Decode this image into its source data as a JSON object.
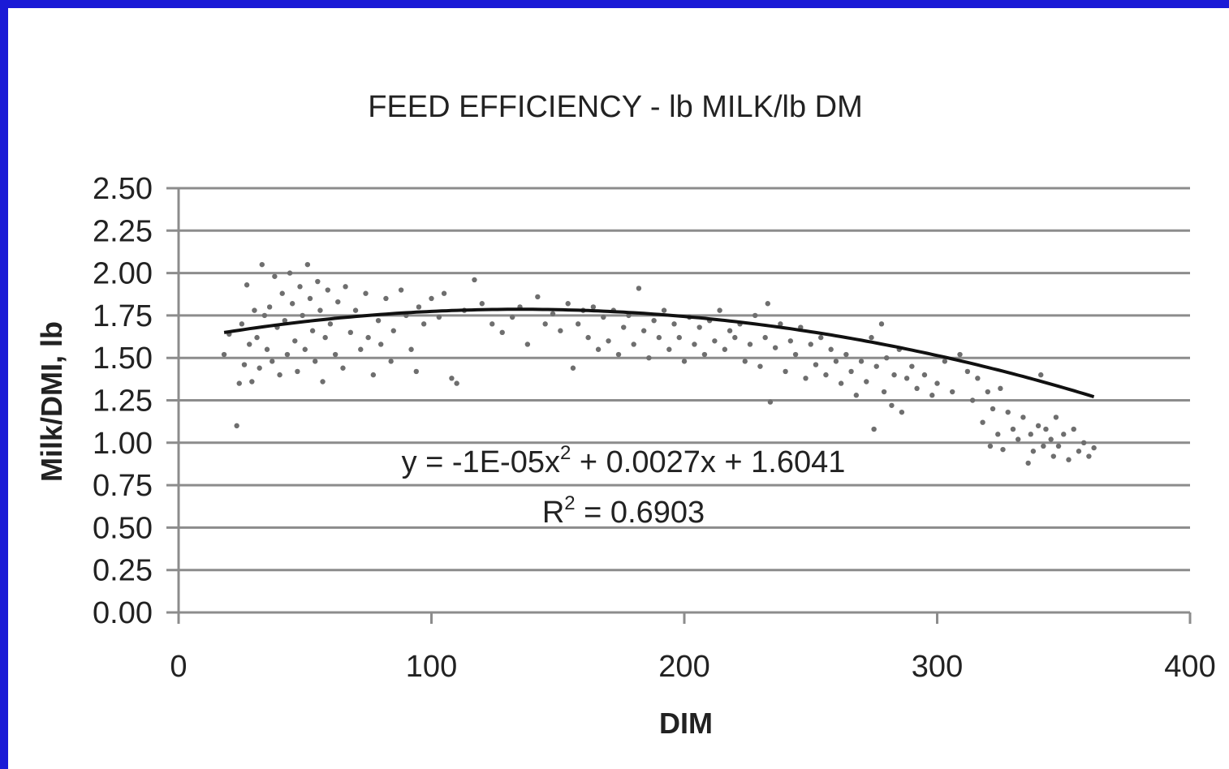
{
  "colors": {
    "border": "#1a1ad6",
    "background": "#ffffff",
    "gridline": "#8c8c8c",
    "points": "#6e6e6e",
    "trendline": "#111111",
    "text": "#222222"
  },
  "chart_data": {
    "type": "scatter",
    "title": "FEED EFFICIENCY - lb MILK/lb DM",
    "xlabel": "DIM",
    "ylabel": "Milk/DMI, lb",
    "xlim": [
      0,
      400
    ],
    "ylim": [
      0,
      2.5
    ],
    "x_ticks": [
      "0",
      "100",
      "200",
      "300",
      "400"
    ],
    "y_ticks": [
      "0.00",
      "0.25",
      "0.50",
      "0.75",
      "1.00",
      "1.25",
      "1.50",
      "1.75",
      "2.00",
      "2.25",
      "2.50"
    ],
    "grid": true,
    "legend": "none",
    "trendline": {
      "type": "polynomial-2",
      "a": -1e-05,
      "b": 0.0027,
      "c": 1.6041,
      "x_range": [
        18,
        362
      ],
      "equation_text": "y = -1E-05x",
      "equation_sup": "2",
      "equation_rest": " + 0.0027x + 1.6041",
      "r2_text": "R",
      "r2_sup": "2",
      "r2_rest": " = 0.6903"
    },
    "series": [
      {
        "values": [
          [
            18,
            1.52
          ],
          [
            20,
            1.64
          ],
          [
            23,
            1.1
          ],
          [
            24,
            1.35
          ],
          [
            25,
            1.7
          ],
          [
            26,
            1.46
          ],
          [
            27,
            1.93
          ],
          [
            28,
            1.58
          ],
          [
            29,
            1.36
          ],
          [
            30,
            1.78
          ],
          [
            31,
            1.62
          ],
          [
            32,
            1.44
          ],
          [
            33,
            2.05
          ],
          [
            34,
            1.75
          ],
          [
            35,
            1.55
          ],
          [
            36,
            1.8
          ],
          [
            37,
            1.48
          ],
          [
            38,
            1.98
          ],
          [
            39,
            1.68
          ],
          [
            40,
            1.4
          ],
          [
            41,
            1.88
          ],
          [
            42,
            1.72
          ],
          [
            43,
            1.52
          ],
          [
            44,
            2.0
          ],
          [
            45,
            1.82
          ],
          [
            46,
            1.6
          ],
          [
            47,
            1.42
          ],
          [
            48,
            1.92
          ],
          [
            49,
            1.75
          ],
          [
            50,
            1.55
          ],
          [
            51,
            2.05
          ],
          [
            52,
            1.85
          ],
          [
            53,
            1.66
          ],
          [
            54,
            1.48
          ],
          [
            55,
            1.95
          ],
          [
            56,
            1.78
          ],
          [
            57,
            1.36
          ],
          [
            58,
            1.62
          ],
          [
            59,
            1.9
          ],
          [
            60,
            1.7
          ],
          [
            62,
            1.52
          ],
          [
            63,
            1.83
          ],
          [
            65,
            1.44
          ],
          [
            66,
            1.92
          ],
          [
            68,
            1.65
          ],
          [
            70,
            1.78
          ],
          [
            72,
            1.55
          ],
          [
            74,
            1.88
          ],
          [
            75,
            1.62
          ],
          [
            77,
            1.4
          ],
          [
            79,
            1.72
          ],
          [
            80,
            1.58
          ],
          [
            82,
            1.85
          ],
          [
            84,
            1.48
          ],
          [
            85,
            1.66
          ],
          [
            88,
            1.9
          ],
          [
            90,
            1.75
          ],
          [
            92,
            1.55
          ],
          [
            94,
            1.42
          ],
          [
            95,
            1.8
          ],
          [
            97,
            1.7
          ],
          [
            100,
            1.85
          ],
          [
            103,
            1.74
          ],
          [
            105,
            1.88
          ],
          [
            108,
            1.38
          ],
          [
            110,
            1.35
          ],
          [
            113,
            1.78
          ],
          [
            117,
            1.96
          ],
          [
            120,
            1.82
          ],
          [
            124,
            1.7
          ],
          [
            128,
            1.65
          ],
          [
            132,
            1.74
          ],
          [
            135,
            1.8
          ],
          [
            138,
            1.58
          ],
          [
            142,
            1.86
          ],
          [
            145,
            1.7
          ],
          [
            148,
            1.76
          ],
          [
            151,
            1.66
          ],
          [
            154,
            1.82
          ],
          [
            156,
            1.44
          ],
          [
            158,
            1.7
          ],
          [
            160,
            1.78
          ],
          [
            162,
            1.62
          ],
          [
            164,
            1.8
          ],
          [
            166,
            1.55
          ],
          [
            168,
            1.74
          ],
          [
            170,
            1.6
          ],
          [
            172,
            1.78
          ],
          [
            174,
            1.52
          ],
          [
            176,
            1.68
          ],
          [
            178,
            1.75
          ],
          [
            180,
            1.58
          ],
          [
            182,
            1.91
          ],
          [
            184,
            1.66
          ],
          [
            186,
            1.5
          ],
          [
            188,
            1.72
          ],
          [
            190,
            1.62
          ],
          [
            192,
            1.78
          ],
          [
            194,
            1.55
          ],
          [
            196,
            1.7
          ],
          [
            198,
            1.62
          ],
          [
            200,
            1.48
          ],
          [
            202,
            1.74
          ],
          [
            204,
            1.58
          ],
          [
            206,
            1.68
          ],
          [
            208,
            1.52
          ],
          [
            210,
            1.72
          ],
          [
            212,
            1.6
          ],
          [
            214,
            1.78
          ],
          [
            216,
            1.55
          ],
          [
            218,
            1.66
          ],
          [
            220,
            1.62
          ],
          [
            222,
            1.7
          ],
          [
            224,
            1.48
          ],
          [
            226,
            1.58
          ],
          [
            228,
            1.75
          ],
          [
            230,
            1.45
          ],
          [
            232,
            1.62
          ],
          [
            233,
            1.82
          ],
          [
            234,
            1.24
          ],
          [
            236,
            1.56
          ],
          [
            238,
            1.7
          ],
          [
            240,
            1.42
          ],
          [
            242,
            1.6
          ],
          [
            244,
            1.52
          ],
          [
            246,
            1.68
          ],
          [
            248,
            1.38
          ],
          [
            250,
            1.58
          ],
          [
            252,
            1.46
          ],
          [
            254,
            1.62
          ],
          [
            256,
            1.4
          ],
          [
            258,
            1.55
          ],
          [
            260,
            1.48
          ],
          [
            262,
            1.35
          ],
          [
            264,
            1.52
          ],
          [
            266,
            1.42
          ],
          [
            268,
            1.28
          ],
          [
            270,
            1.48
          ],
          [
            272,
            1.36
          ],
          [
            274,
            1.62
          ],
          [
            275,
            1.08
          ],
          [
            276,
            1.45
          ],
          [
            278,
            1.7
          ],
          [
            279,
            1.3
          ],
          [
            280,
            1.5
          ],
          [
            282,
            1.22
          ],
          [
            283,
            1.4
          ],
          [
            285,
            1.55
          ],
          [
            286,
            1.18
          ],
          [
            288,
            1.38
          ],
          [
            290,
            1.45
          ],
          [
            292,
            1.32
          ],
          [
            295,
            1.4
          ],
          [
            298,
            1.28
          ],
          [
            300,
            1.35
          ],
          [
            303,
            1.48
          ],
          [
            306,
            1.3
          ],
          [
            309,
            1.52
          ],
          [
            312,
            1.42
          ],
          [
            314,
            1.25
          ],
          [
            316,
            1.38
          ],
          [
            318,
            1.12
          ],
          [
            320,
            1.3
          ],
          [
            321,
            0.98
          ],
          [
            322,
            1.2
          ],
          [
            324,
            1.05
          ],
          [
            325,
            1.32
          ],
          [
            326,
            0.96
          ],
          [
            328,
            1.18
          ],
          [
            330,
            1.08
          ],
          [
            332,
            1.02
          ],
          [
            334,
            1.15
          ],
          [
            336,
            0.88
          ],
          [
            337,
            1.05
          ],
          [
            338,
            0.95
          ],
          [
            340,
            1.1
          ],
          [
            341,
            1.4
          ],
          [
            342,
            0.98
          ],
          [
            343,
            1.08
          ],
          [
            345,
            1.02
          ],
          [
            346,
            0.92
          ],
          [
            347,
            1.15
          ],
          [
            348,
            0.98
          ],
          [
            350,
            1.05
          ],
          [
            352,
            0.9
          ],
          [
            354,
            1.08
          ],
          [
            356,
            0.95
          ],
          [
            358,
            1.0
          ],
          [
            360,
            0.92
          ],
          [
            362,
            0.97
          ]
        ]
      }
    ]
  }
}
